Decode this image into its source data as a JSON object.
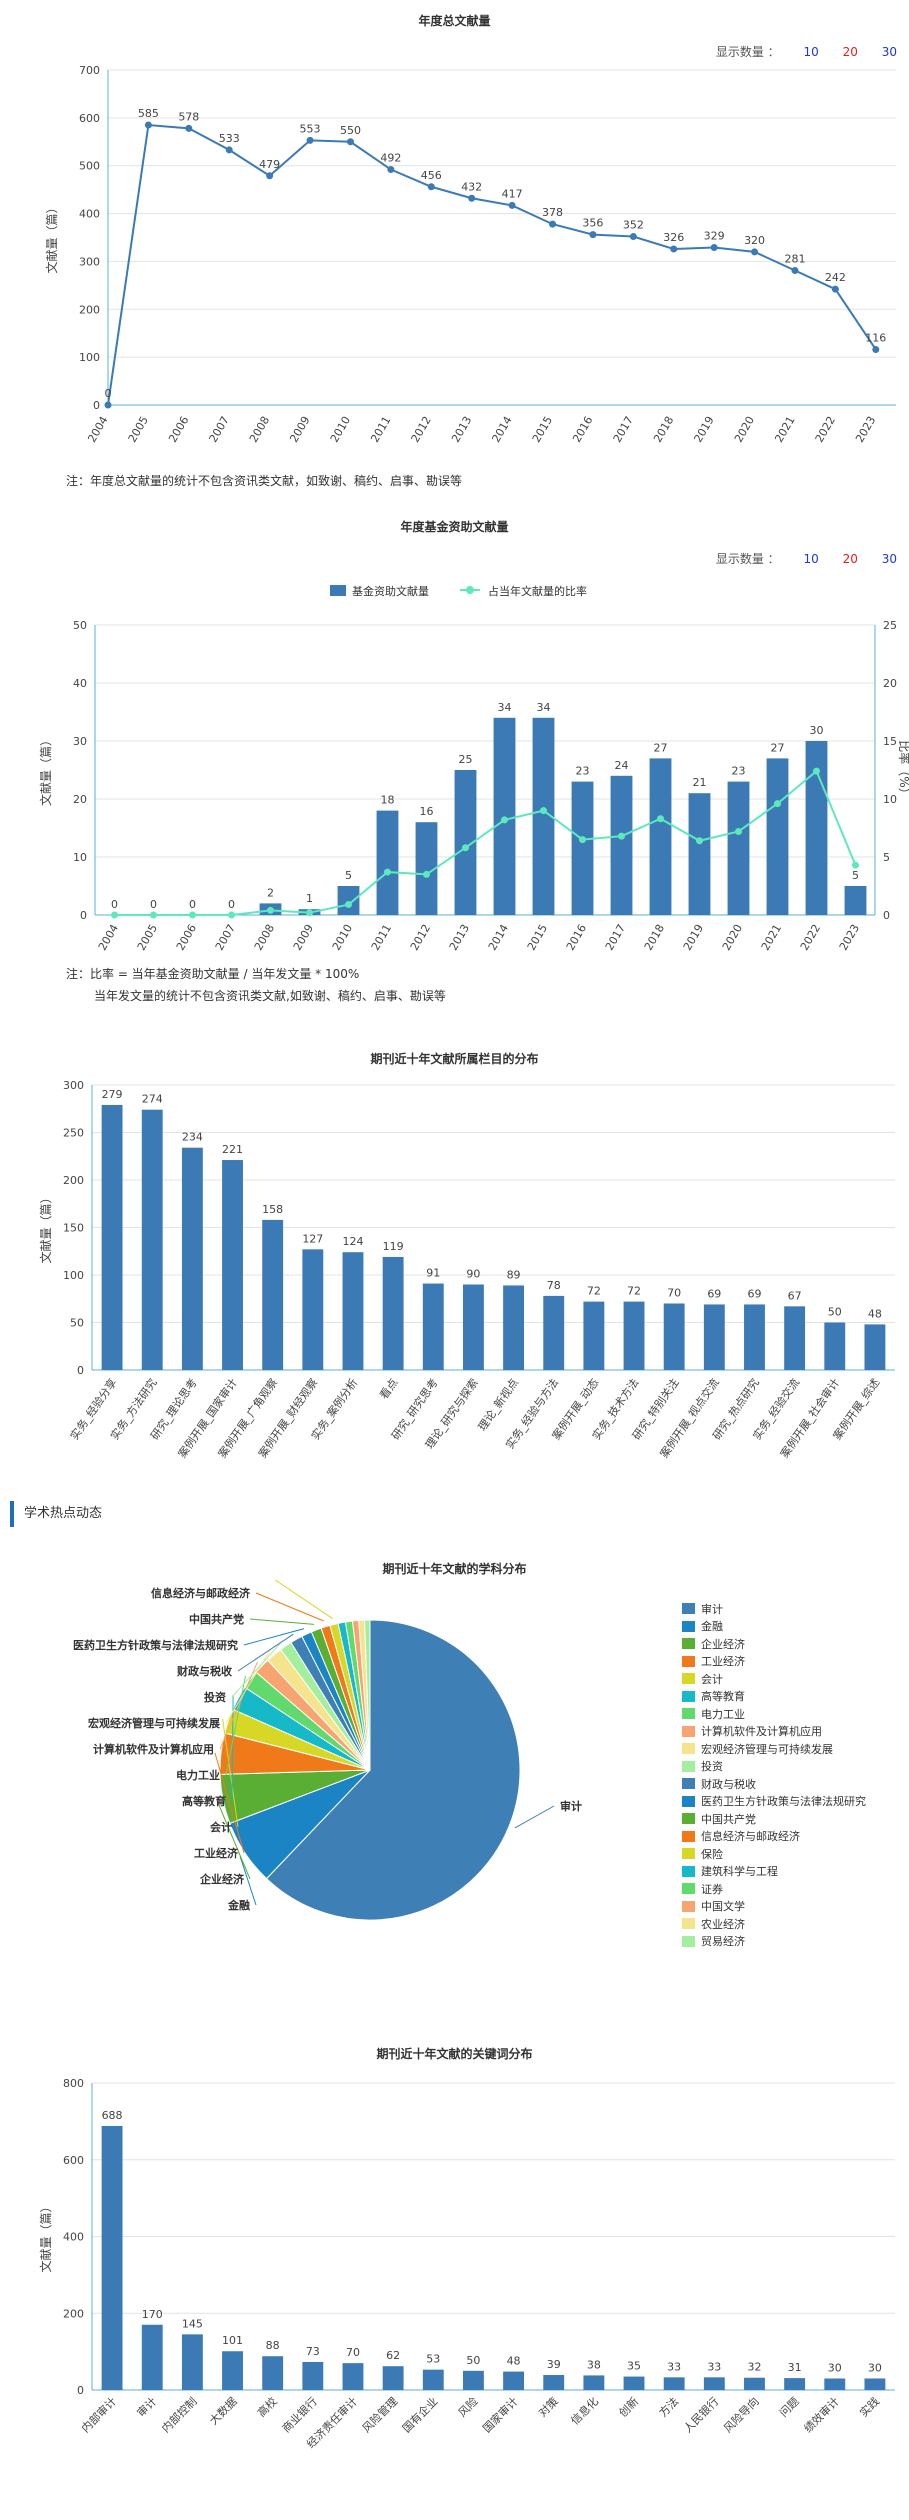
{
  "chart1": {
    "title": "年度总文献量",
    "count_label": "显示数量 ：",
    "counts": [
      "10",
      "20",
      "30"
    ],
    "note": "注：年度总文献量的统计不包含资讯类文献，如致谢、稿约、启事、勘误等"
  },
  "chart2": {
    "title": "年度基金资助文献量",
    "count_label": "显示数量 ：",
    "counts": [
      "10",
      "20",
      "30"
    ],
    "legend_bar": "基金资助文献量",
    "legend_line": "占当年文献量的比率",
    "note1": "注：比率 = 当年基金资助文献量 / 当年发文量 * 100%",
    "note2": "当年发文量的统计不包含资讯类文献,如致谢、稿约、启事、勘误等"
  },
  "chart3": {
    "title": "期刊近十年文献所属栏目的分布"
  },
  "section_heading": "学术热点动态",
  "chart4": {
    "title": "期刊近十年文献的学科分布"
  },
  "chart5": {
    "title": "期刊近十年文献的关键词分布"
  },
  "chart_data": [
    {
      "type": "line",
      "title": "年度总文献量",
      "ylabel": "文献量（篇）",
      "ylim": [
        0,
        700
      ],
      "yticks": [
        0,
        100,
        200,
        300,
        400,
        500,
        600,
        700
      ],
      "x": [
        "2004",
        "2005",
        "2006",
        "2007",
        "2008",
        "2009",
        "2010",
        "2011",
        "2012",
        "2013",
        "2014",
        "2015",
        "2016",
        "2017",
        "2018",
        "2019",
        "2020",
        "2021",
        "2022",
        "2023"
      ],
      "values": [
        0,
        585,
        578,
        533,
        479,
        553,
        550,
        492,
        456,
        432,
        417,
        378,
        356,
        352,
        326,
        329,
        320,
        281,
        242,
        116
      ],
      "color": "#3b7ab5",
      "grid": true
    },
    {
      "type": "bar",
      "title": "年度基金资助文献量",
      "ylabel": "文献量（篇）",
      "y2label": "比率（%）",
      "ylim": [
        0,
        50
      ],
      "y2lim": [
        0,
        25
      ],
      "yticks": [
        0,
        10,
        20,
        30,
        40,
        50
      ],
      "y2ticks": [
        0,
        5,
        10,
        15,
        20,
        25
      ],
      "categories": [
        "2004",
        "2005",
        "2006",
        "2007",
        "2008",
        "2009",
        "2010",
        "2011",
        "2012",
        "2013",
        "2014",
        "2015",
        "2016",
        "2017",
        "2018",
        "2019",
        "2020",
        "2021",
        "2022",
        "2023"
      ],
      "series": [
        {
          "name": "基金资助文献量",
          "type": "bar",
          "color": "#3b7ab5",
          "values": [
            0,
            0,
            0,
            0,
            2,
            1,
            5,
            18,
            16,
            25,
            34,
            34,
            23,
            24,
            27,
            21,
            23,
            27,
            30,
            5
          ]
        },
        {
          "name": "占当年文献量的比率",
          "type": "line",
          "color": "#5ee8be",
          "values": [
            0,
            0,
            0,
            0,
            0.4,
            0.2,
            0.9,
            3.7,
            3.5,
            5.8,
            8.2,
            9.0,
            6.5,
            6.8,
            8.3,
            6.4,
            7.2,
            9.6,
            12.4,
            4.3
          ]
        }
      ],
      "legend": "top",
      "grid": true
    },
    {
      "type": "bar",
      "title": "期刊近十年文献所属栏目的分布",
      "ylabel": "文献量（篇）",
      "ylim": [
        0,
        300
      ],
      "yticks": [
        0,
        50,
        100,
        150,
        200,
        250,
        300
      ],
      "categories": [
        "实务_经验分享",
        "实务_方法研究",
        "研究_理论思考",
        "案例开展_国家审计",
        "案例开展_广角观察",
        "案例开展_财经观察",
        "实务_案例分析",
        "看点",
        "研究_研究思考",
        "理论_研究与探索",
        "理论_新视点",
        "实务_经验与方法",
        "案例开展_动态",
        "实务_技术方法",
        "研究_特别关注",
        "案例开展_视点交流",
        "研究_热点研究",
        "实务_经验交流",
        "案例开展_社会审计",
        "案例开展_综述"
      ],
      "values": [
        279,
        274,
        234,
        221,
        158,
        127,
        124,
        119,
        91,
        90,
        89,
        78,
        72,
        72,
        70,
        69,
        69,
        67,
        50,
        48
      ],
      "color": "#3b7ab5",
      "grid": true
    },
    {
      "type": "pie",
      "title": "期刊近十年文献的学科分布",
      "labels": [
        "审计",
        "金融",
        "企业经济",
        "工业经济",
        "会计",
        "高等教育",
        "电力工业",
        "计算机软件及计算机应用",
        "宏观经济管理与可持续发展",
        "投资",
        "财政与税收",
        "医药卫生方针政策与法律法规研究",
        "中国共产党",
        "信息经济与邮政经济",
        "保险",
        "建筑科学与工程",
        "证券",
        "中国文学",
        "农业经济",
        "贸易经济"
      ],
      "values": [
        1400,
        160,
        120,
        100,
        60,
        60,
        45,
        40,
        40,
        30,
        30,
        25,
        25,
        22,
        20,
        18,
        17,
        15,
        14,
        13
      ],
      "colors": [
        "#3e7fb5",
        "#1a84c5",
        "#59ae33",
        "#f07a1a",
        "#d6d825",
        "#16b9c8",
        "#61d96c",
        "#f7a471",
        "#f6e48c",
        "#a3ef9d",
        "#3e7fb5",
        "#1a84c5",
        "#59ae33",
        "#f07a1a",
        "#d6d825",
        "#16b9c8",
        "#61d96c",
        "#f7a471",
        "#f6e48c",
        "#a3ef9d"
      ],
      "legend": "right"
    },
    {
      "type": "bar",
      "title": "期刊近十年文献的关键词分布",
      "ylabel": "文献量（篇）",
      "ylim": [
        0,
        800
      ],
      "yticks": [
        0,
        200,
        400,
        600,
        800
      ],
      "categories": [
        "内部审计",
        "审计",
        "内部控制",
        "大数据",
        "高校",
        "商业银行",
        "经济责任审计",
        "风险管理",
        "国有企业",
        "风险",
        "国家审计",
        "对策",
        "信息化",
        "创新",
        "方法",
        "人民银行",
        "风险导向",
        "问题",
        "绩效审计",
        "实践"
      ],
      "values": [
        688,
        170,
        145,
        101,
        88,
        73,
        70,
        62,
        53,
        50,
        48,
        39,
        38,
        35,
        33,
        33,
        32,
        31,
        30,
        30
      ],
      "color": "#3b7ab5",
      "grid": true
    }
  ]
}
